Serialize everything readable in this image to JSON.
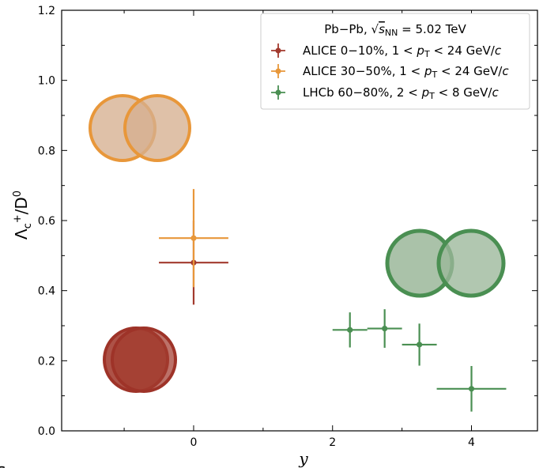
{
  "chart_data": {
    "type": "scatter",
    "xlabel": "y",
    "ylabel": "Λc+/D0",
    "xlim": [
      -1.9,
      4.95
    ],
    "ylim": [
      0.0,
      1.2
    ],
    "x_ticks": [
      "0",
      "2",
      "4"
    ],
    "y_ticks": [
      "0.0",
      "0.2",
      "0.4",
      "0.6",
      "0.8",
      "1.0",
      "1.2"
    ],
    "legend": {
      "placement": "top-right",
      "header": "Pb−Pb, √sNN = 5.02 TeV"
    },
    "series": [
      {
        "name": "ALICE 0−10%, 1 < pT < 24 GeV/c",
        "color": "#a23a2e",
        "points": [
          {
            "x": 0.0,
            "y": 0.48,
            "xerr": 0.5,
            "yerr": 0.12
          }
        ]
      },
      {
        "name": "ALICE 30−50%, 1 < pT < 24 GeV/c",
        "color": "#e8973a",
        "points": [
          {
            "x": 0.0,
            "y": 0.55,
            "xerr": 0.5,
            "yerr": 0.14
          }
        ]
      },
      {
        "name": "LHCb 60−80%, 2 < pT < 8 GeV/c",
        "color": "#4a8f52",
        "points": [
          {
            "x": 2.25,
            "y": 0.288,
            "xerr": 0.25,
            "yerr": 0.05
          },
          {
            "x": 2.75,
            "y": 0.292,
            "xerr": 0.25,
            "yerr": 0.055
          },
          {
            "x": 3.25,
            "y": 0.246,
            "xerr": 0.25,
            "yerr": 0.06
          },
          {
            "x": 4.0,
            "y": 0.12,
            "xerr": 0.5,
            "yerr": 0.065
          }
        ]
      }
    ],
    "corner_text": "s"
  }
}
